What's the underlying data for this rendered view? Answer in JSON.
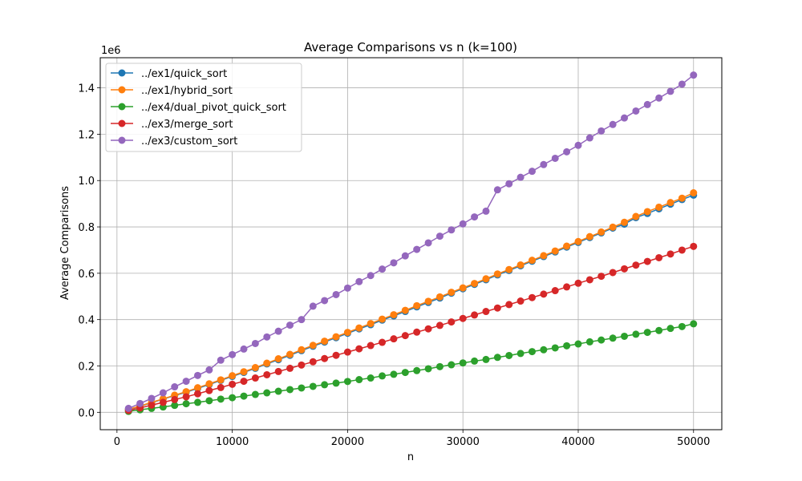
{
  "chart_data": {
    "type": "line",
    "title": "Average Comparisons vs n (k=100)",
    "xlabel": "n",
    "ylabel": "Average Comparisons",
    "y_offset_label": "1e6",
    "xlim": [
      -1450,
      52450
    ],
    "ylim": [
      -75000,
      1530000
    ],
    "xticks": [
      0,
      10000,
      20000,
      30000,
      40000,
      50000
    ],
    "xtick_labels": [
      "0",
      "10000",
      "20000",
      "30000",
      "40000",
      "50000"
    ],
    "yticks": [
      0,
      200000,
      400000,
      600000,
      800000,
      1000000,
      1200000,
      1400000
    ],
    "ytick_labels": [
      "0.0",
      "0.2",
      "0.4",
      "0.6",
      "0.8",
      "1.0",
      "1.2",
      "1.4"
    ],
    "grid": true,
    "legend_position": "top-left",
    "x": [
      1000,
      2000,
      3000,
      4000,
      5000,
      6000,
      7000,
      8000,
      9000,
      10000,
      11000,
      12000,
      13000,
      14000,
      15000,
      16000,
      17000,
      18000,
      19000,
      20000,
      21000,
      22000,
      23000,
      24000,
      25000,
      26000,
      27000,
      28000,
      29000,
      30000,
      31000,
      32000,
      33000,
      34000,
      35000,
      36000,
      37000,
      38000,
      39000,
      40000,
      41000,
      42000,
      43000,
      44000,
      45000,
      46000,
      47000,
      48000,
      49000,
      50000
    ],
    "series": [
      {
        "name": "../ex1/quick_sort",
        "color": "#1f77b4",
        "values": [
          12000,
          26000,
          41000,
          57000,
          72000,
          87000,
          103000,
          120000,
          138000,
          155000,
          172000,
          190000,
          209000,
          227000,
          246000,
          266000,
          285000,
          303000,
          322000,
          341000,
          360000,
          378000,
          398000,
          416000,
          435000,
          455000,
          474000,
          493000,
          514000,
          533000,
          552000,
          572000,
          593000,
          612000,
          632000,
          652000,
          672000,
          692000,
          713000,
          733000,
          754000,
          774000,
          795000,
          812000,
          840000,
          858000,
          878000,
          898000,
          918000,
          937000
        ]
      },
      {
        "name": "../ex1/hybrid_sort",
        "color": "#ff7f0e",
        "values": [
          13000,
          27000,
          43000,
          58000,
          74000,
          89000,
          106000,
          123000,
          140000,
          158000,
          175000,
          193000,
          212000,
          231000,
          250000,
          270000,
          289000,
          307000,
          326000,
          345000,
          364000,
          383000,
          402000,
          421000,
          440000,
          460000,
          479000,
          498000,
          518000,
          537000,
          556000,
          576000,
          597000,
          616000,
          636000,
          656000,
          676000,
          696000,
          717000,
          737000,
          758000,
          778000,
          799000,
          820000,
          845000,
          866000,
          885000,
          905000,
          924000,
          947000
        ]
      },
      {
        "name": "../ex4/dual_pivot_quick_sort",
        "color": "#2ca02c",
        "values": [
          4000,
          11000,
          17000,
          23000,
          30000,
          37000,
          43000,
          50000,
          57000,
          63000,
          70000,
          77000,
          84000,
          91000,
          98000,
          105000,
          112000,
          119000,
          126000,
          133000,
          141000,
          148000,
          157000,
          164000,
          172000,
          180000,
          188000,
          197000,
          205000,
          213000,
          221000,
          228000,
          237000,
          245000,
          254000,
          262000,
          270000,
          278000,
          287000,
          295000,
          304000,
          312000,
          320000,
          328000,
          337000,
          345000,
          353000,
          362000,
          370000,
          382000
        ]
      },
      {
        "name": "../ex3/merge_sort",
        "color": "#d62728",
        "values": [
          8000,
          19000,
          31000,
          43000,
          55000,
          67000,
          80000,
          94000,
          107000,
          121000,
          134000,
          148000,
          162000,
          176000,
          190000,
          204000,
          218000,
          232000,
          246000,
          260000,
          274000,
          288000,
          302000,
          317000,
          331000,
          346000,
          360000,
          375000,
          390000,
          405000,
          420000,
          435000,
          450000,
          465000,
          480000,
          495000,
          510000,
          525000,
          541000,
          557000,
          572000,
          587000,
          603000,
          619000,
          635000,
          651000,
          667000,
          683000,
          700000,
          716000
        ]
      },
      {
        "name": "../ex3/custom_sort",
        "color": "#9467bd",
        "values": [
          17000,
          38000,
          60000,
          84000,
          110000,
          134000,
          159000,
          183000,
          225000,
          249000,
          273000,
          297000,
          325000,
          350000,
          376000,
          400000,
          458000,
          482000,
          508000,
          536000,
          564000,
          590000,
          618000,
          645000,
          675000,
          703000,
          731000,
          760000,
          787000,
          813000,
          843000,
          868000,
          960000,
          986000,
          1014000,
          1040000,
          1069000,
          1096000,
          1124000,
          1152000,
          1184000,
          1214000,
          1242000,
          1270000,
          1300000,
          1328000,
          1356000,
          1385000,
          1416000,
          1455000
        ]
      }
    ]
  }
}
